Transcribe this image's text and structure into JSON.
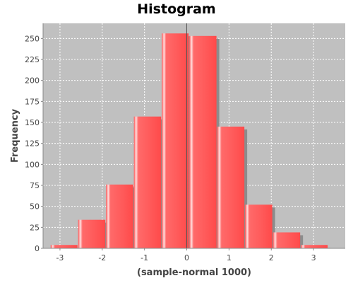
{
  "chart_data": {
    "type": "bar",
    "title": "Histogram",
    "xlabel": "(sample-normal 1000)",
    "ylabel": "Frequency",
    "xlim": [
      -3.4,
      3.75
    ],
    "ylim": [
      0,
      268
    ],
    "xticks": [
      -3,
      -2,
      -1,
      0,
      1,
      2,
      3
    ],
    "yticks": [
      0,
      25,
      50,
      75,
      100,
      125,
      150,
      175,
      200,
      225,
      250
    ],
    "grid": true,
    "legend": "none",
    "bins": [
      {
        "x0": -3.22,
        "x1": -2.57,
        "value": 4
      },
      {
        "x0": -2.57,
        "x1": -1.91,
        "value": 34
      },
      {
        "x0": -1.91,
        "x1": -1.25,
        "value": 76
      },
      {
        "x0": -1.25,
        "x1": -0.59,
        "value": 157
      },
      {
        "x0": -0.59,
        "x1": 0.06,
        "value": 256
      },
      {
        "x0": 0.06,
        "x1": 0.72,
        "value": 253
      },
      {
        "x0": 0.72,
        "x1": 1.38,
        "value": 145
      },
      {
        "x0": 1.38,
        "x1": 2.04,
        "value": 52
      },
      {
        "x0": 2.04,
        "x1": 2.7,
        "value": 19
      },
      {
        "x0": 2.7,
        "x1": 3.35,
        "value": 4
      }
    ],
    "colors": {
      "bar": "#ff5a5a",
      "bar_highlight": "#ffd6d6",
      "shadow": "#8c8c8c",
      "plot_background": "#c0c0c0",
      "gridline": "#ffffff"
    }
  }
}
